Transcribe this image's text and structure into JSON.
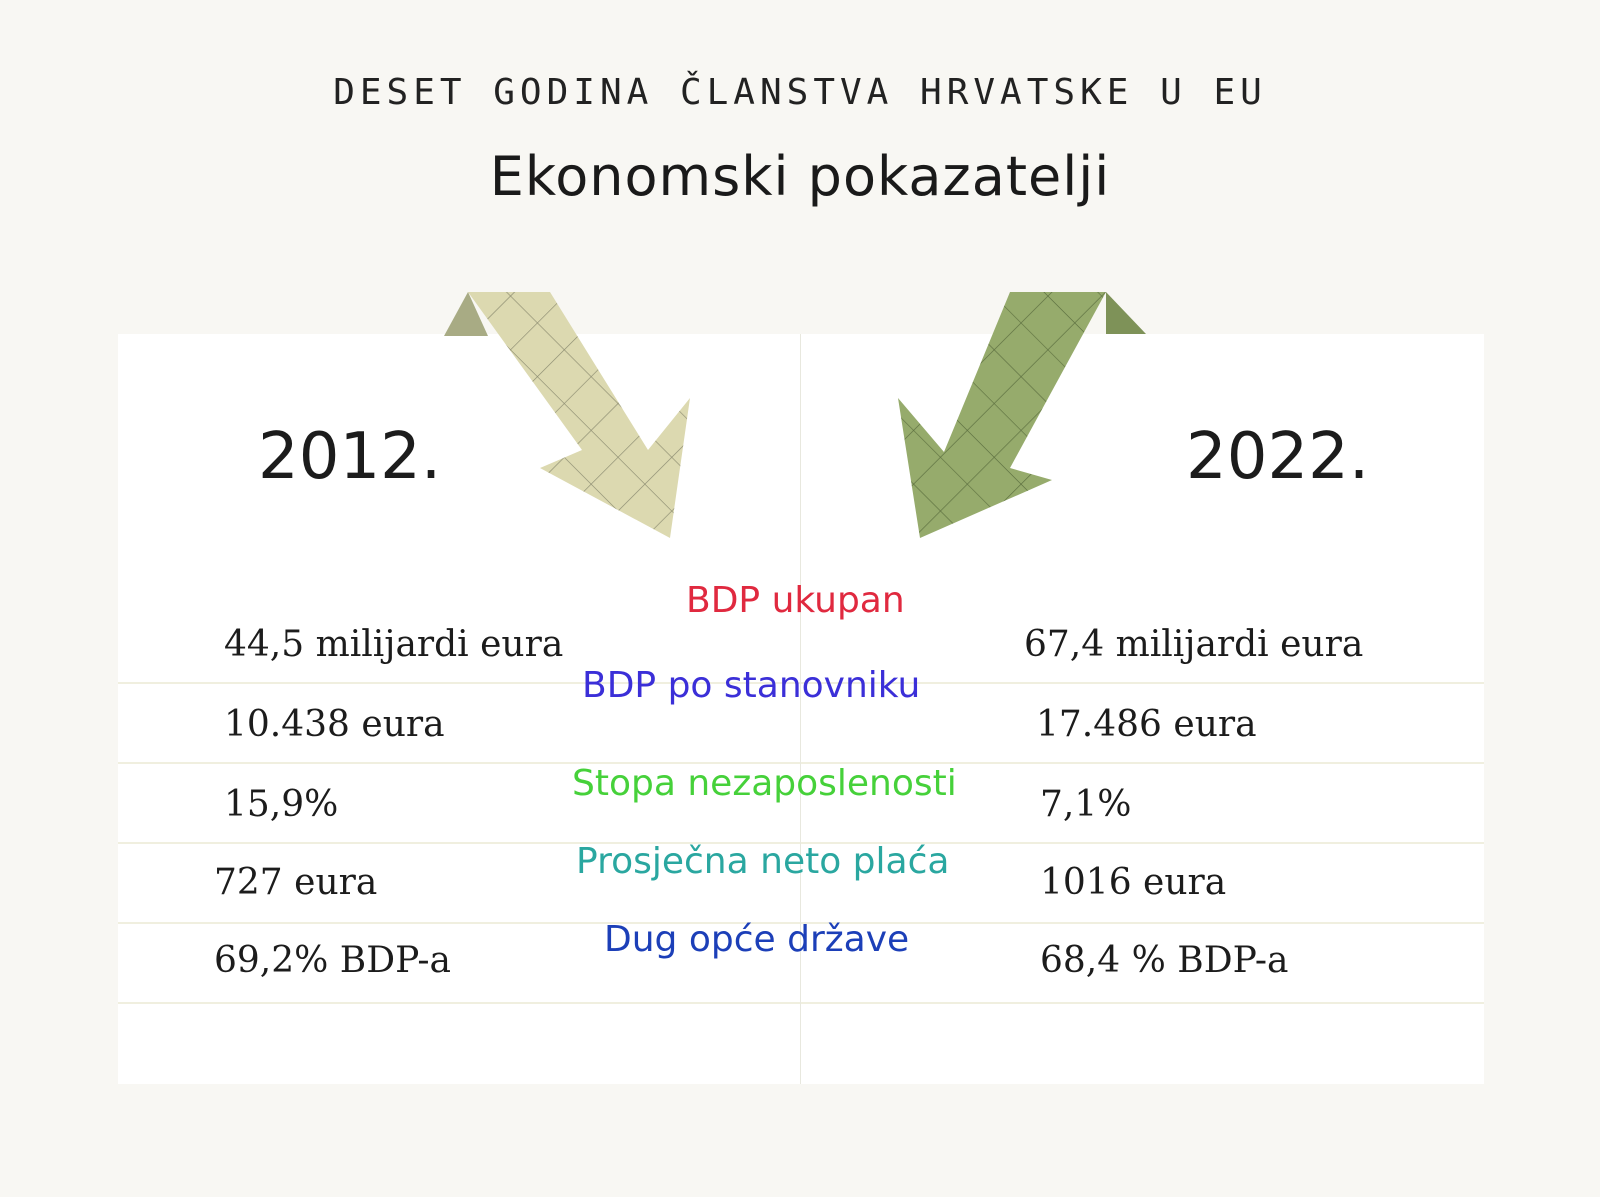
{
  "header": {
    "kicker": "DESET GODINA ČLANSTVA HRVATSKE U EU",
    "title": "Ekonomski pokazatelji"
  },
  "years": {
    "left": "2012.",
    "right": "2022."
  },
  "colors": {
    "arrow_left": "#dcd9b0",
    "arrow_left_shadow": "#a8ab84",
    "arrow_right": "#96ab6c",
    "arrow_right_shadow": "#7e9258"
  },
  "indicators": [
    {
      "label": "BDP ukupan",
      "color": "#e0293f",
      "value_2012": "44,5 milijardi eura",
      "value_2022": "67,4 milijardi eura"
    },
    {
      "label": "BDP po stanovniku",
      "color": "#3b2fd8",
      "value_2012": "10.438 eura",
      "value_2022": "17.486 eura"
    },
    {
      "label": "Stopa nezaposlenosti",
      "color": "#46d13a",
      "value_2012": "15,9%",
      "value_2022": "7,1%"
    },
    {
      "label": "Prosječna neto plaća",
      "color": "#2aa7a0",
      "value_2012": "727 eura",
      "value_2022": "1016 eura"
    },
    {
      "label": "Dug opće države",
      "color": "#1c3fb8",
      "value_2012": "69,2% BDP-a",
      "value_2022": "68,4 % BDP-a"
    }
  ]
}
